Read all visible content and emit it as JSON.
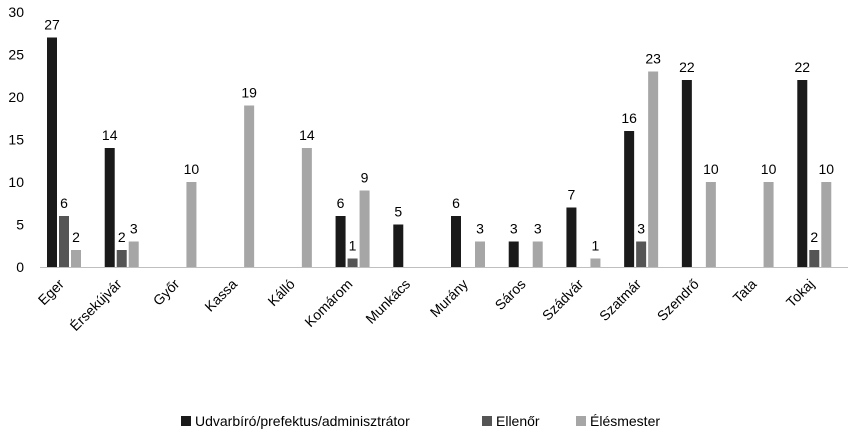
{
  "chart_data": {
    "type": "bar",
    "categories": [
      "Eger",
      "Érsekújvár",
      "Győr",
      "Kassa",
      "Kálló",
      "Komárom",
      "Munkács",
      "Murány",
      "Sáros",
      "Szádvár",
      "Szatmár",
      "Szendrő",
      "Tata",
      "Tokaj"
    ],
    "series": [
      {
        "name": "Udvarbíró/prefektus/adminisztrátor",
        "color": "#1a1a1a",
        "values": [
          27,
          14,
          null,
          null,
          null,
          6,
          5,
          6,
          3,
          7,
          16,
          22,
          null,
          22
        ]
      },
      {
        "name": "Ellenőr",
        "color": "#555555",
        "values": [
          6,
          2,
          null,
          null,
          null,
          1,
          null,
          null,
          null,
          null,
          3,
          null,
          null,
          2
        ]
      },
      {
        "name": "Élésmester",
        "color": "#a6a6a6",
        "values": [
          2,
          3,
          10,
          19,
          14,
          9,
          null,
          3,
          3,
          1,
          23,
          10,
          10,
          10
        ]
      }
    ],
    "ylim": [
      0,
      30
    ],
    "yticks": [
      "0",
      "5",
      "10",
      "15",
      "20",
      "25",
      "30"
    ],
    "grid": false,
    "legend_position": "bottom"
  }
}
